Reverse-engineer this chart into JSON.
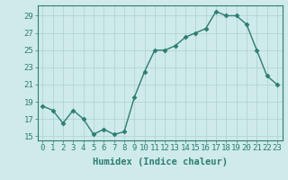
{
  "x": [
    0,
    1,
    2,
    3,
    4,
    5,
    6,
    7,
    8,
    9,
    10,
    11,
    12,
    13,
    14,
    15,
    16,
    17,
    18,
    19,
    20,
    21,
    22,
    23
  ],
  "y": [
    18.5,
    18.0,
    16.5,
    18.0,
    17.0,
    15.2,
    15.8,
    15.2,
    15.5,
    19.5,
    22.5,
    25.0,
    25.0,
    25.5,
    26.5,
    27.0,
    27.5,
    29.5,
    29.0,
    29.0,
    28.0,
    25.0,
    22.0,
    21.0
  ],
  "line_color": "#2e7d6e",
  "marker": "D",
  "marker_size": 2.5,
  "bg_color": "#ceeaea",
  "grid_color": "#afd0d0",
  "xlabel": "Humidex (Indice chaleur)",
  "xlim": [
    -0.5,
    23.5
  ],
  "ylim": [
    14.5,
    30.2
  ],
  "yticks": [
    15,
    17,
    19,
    21,
    23,
    25,
    27,
    29
  ],
  "xticks": [
    0,
    1,
    2,
    3,
    4,
    5,
    6,
    7,
    8,
    9,
    10,
    11,
    12,
    13,
    14,
    15,
    16,
    17,
    18,
    19,
    20,
    21,
    22,
    23
  ],
  "tick_color": "#2e7d6e",
  "label_color": "#2e7d6e",
  "xlabel_fontsize": 7.5,
  "tick_fontsize": 6.5,
  "linewidth": 1.0
}
